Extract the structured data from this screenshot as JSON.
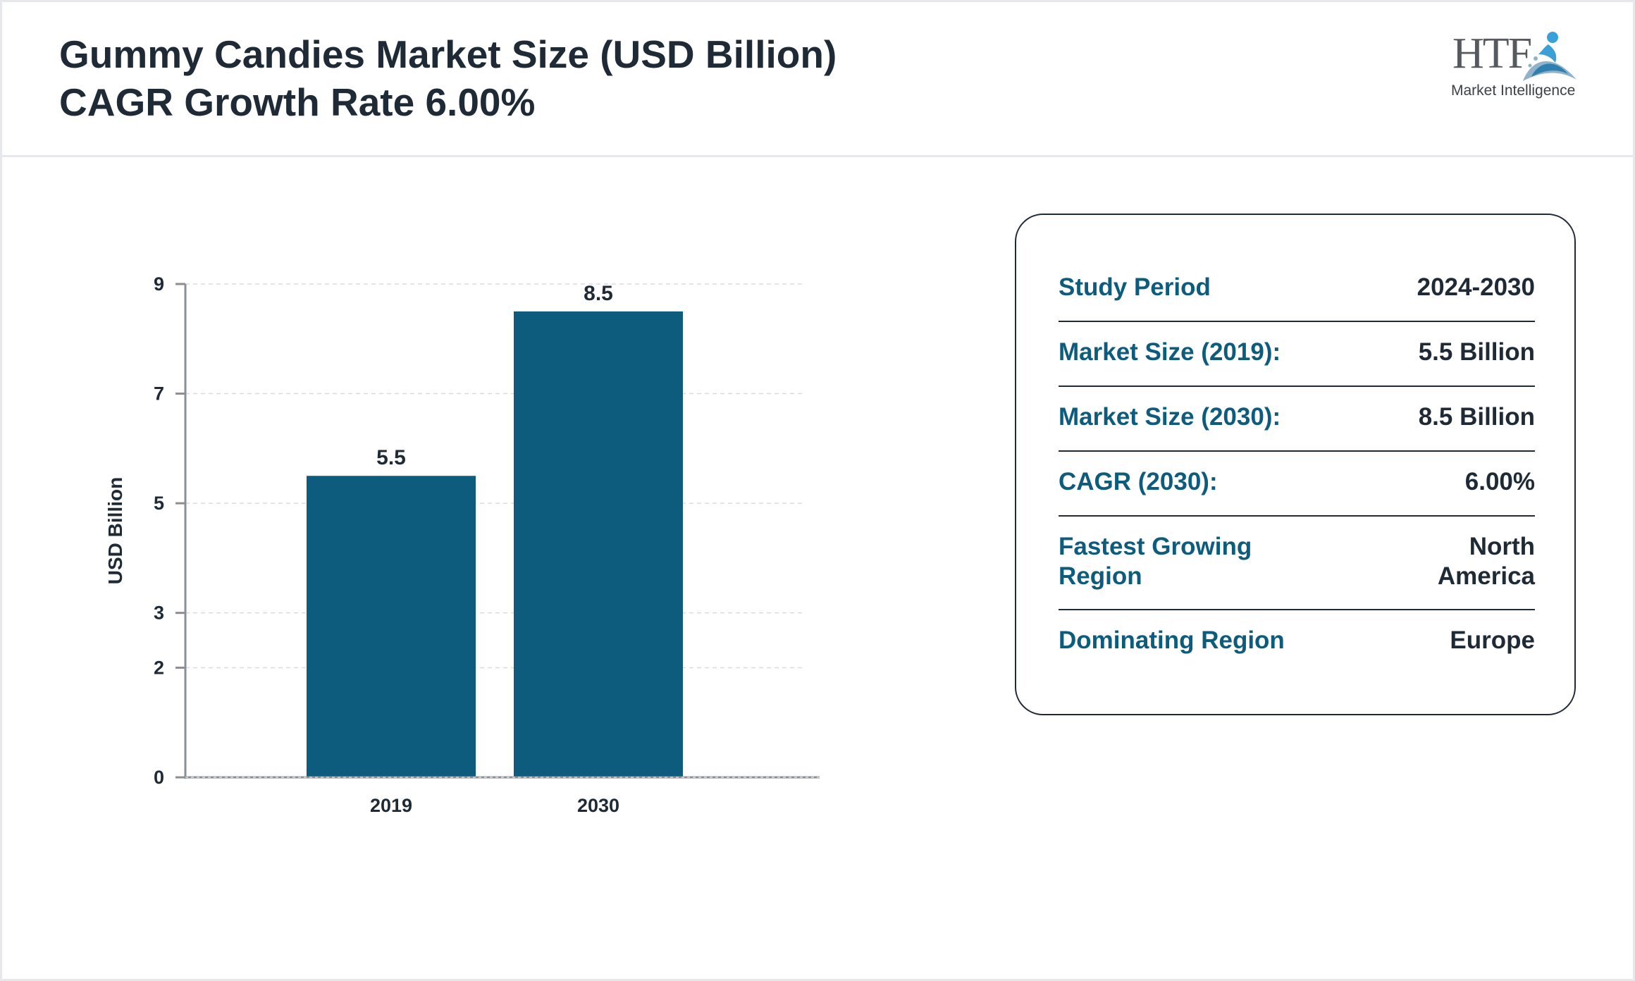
{
  "header": {
    "title_line1": "Gummy Candies Market Size (USD Billion)",
    "title_line2": "CAGR Growth Rate 6.00%"
  },
  "logo": {
    "mark": "HTF",
    "subtitle": "Market Intelligence",
    "icon": "swirl-figure-icon"
  },
  "chart_data": {
    "type": "bar",
    "categories": [
      "2019",
      "2030"
    ],
    "values": [
      5.5,
      8.5
    ],
    "data_labels": [
      "5.5",
      "8.5"
    ],
    "ylabel": "USD Billion",
    "y_ticks": [
      0,
      2,
      3,
      5,
      7,
      9
    ],
    "ylim": [
      0,
      9
    ],
    "grid": true,
    "bar_color": "#0d5c7e"
  },
  "info": {
    "rows": [
      {
        "label": "Study Period",
        "value": "2024-2030"
      },
      {
        "label": "Market Size (2019):",
        "value": "5.5 Billion"
      },
      {
        "label": "Market Size (2030):",
        "value": "8.5 Billion"
      },
      {
        "label": "CAGR (2030):",
        "value": "6.00%"
      },
      {
        "label": "Fastest Growing Region",
        "value": "North America"
      },
      {
        "label": "Dominating Region",
        "value": "Europe"
      }
    ]
  },
  "colors": {
    "title": "#1f2a37",
    "accent": "#0d5c7e",
    "divider": "#e6e8eb"
  }
}
